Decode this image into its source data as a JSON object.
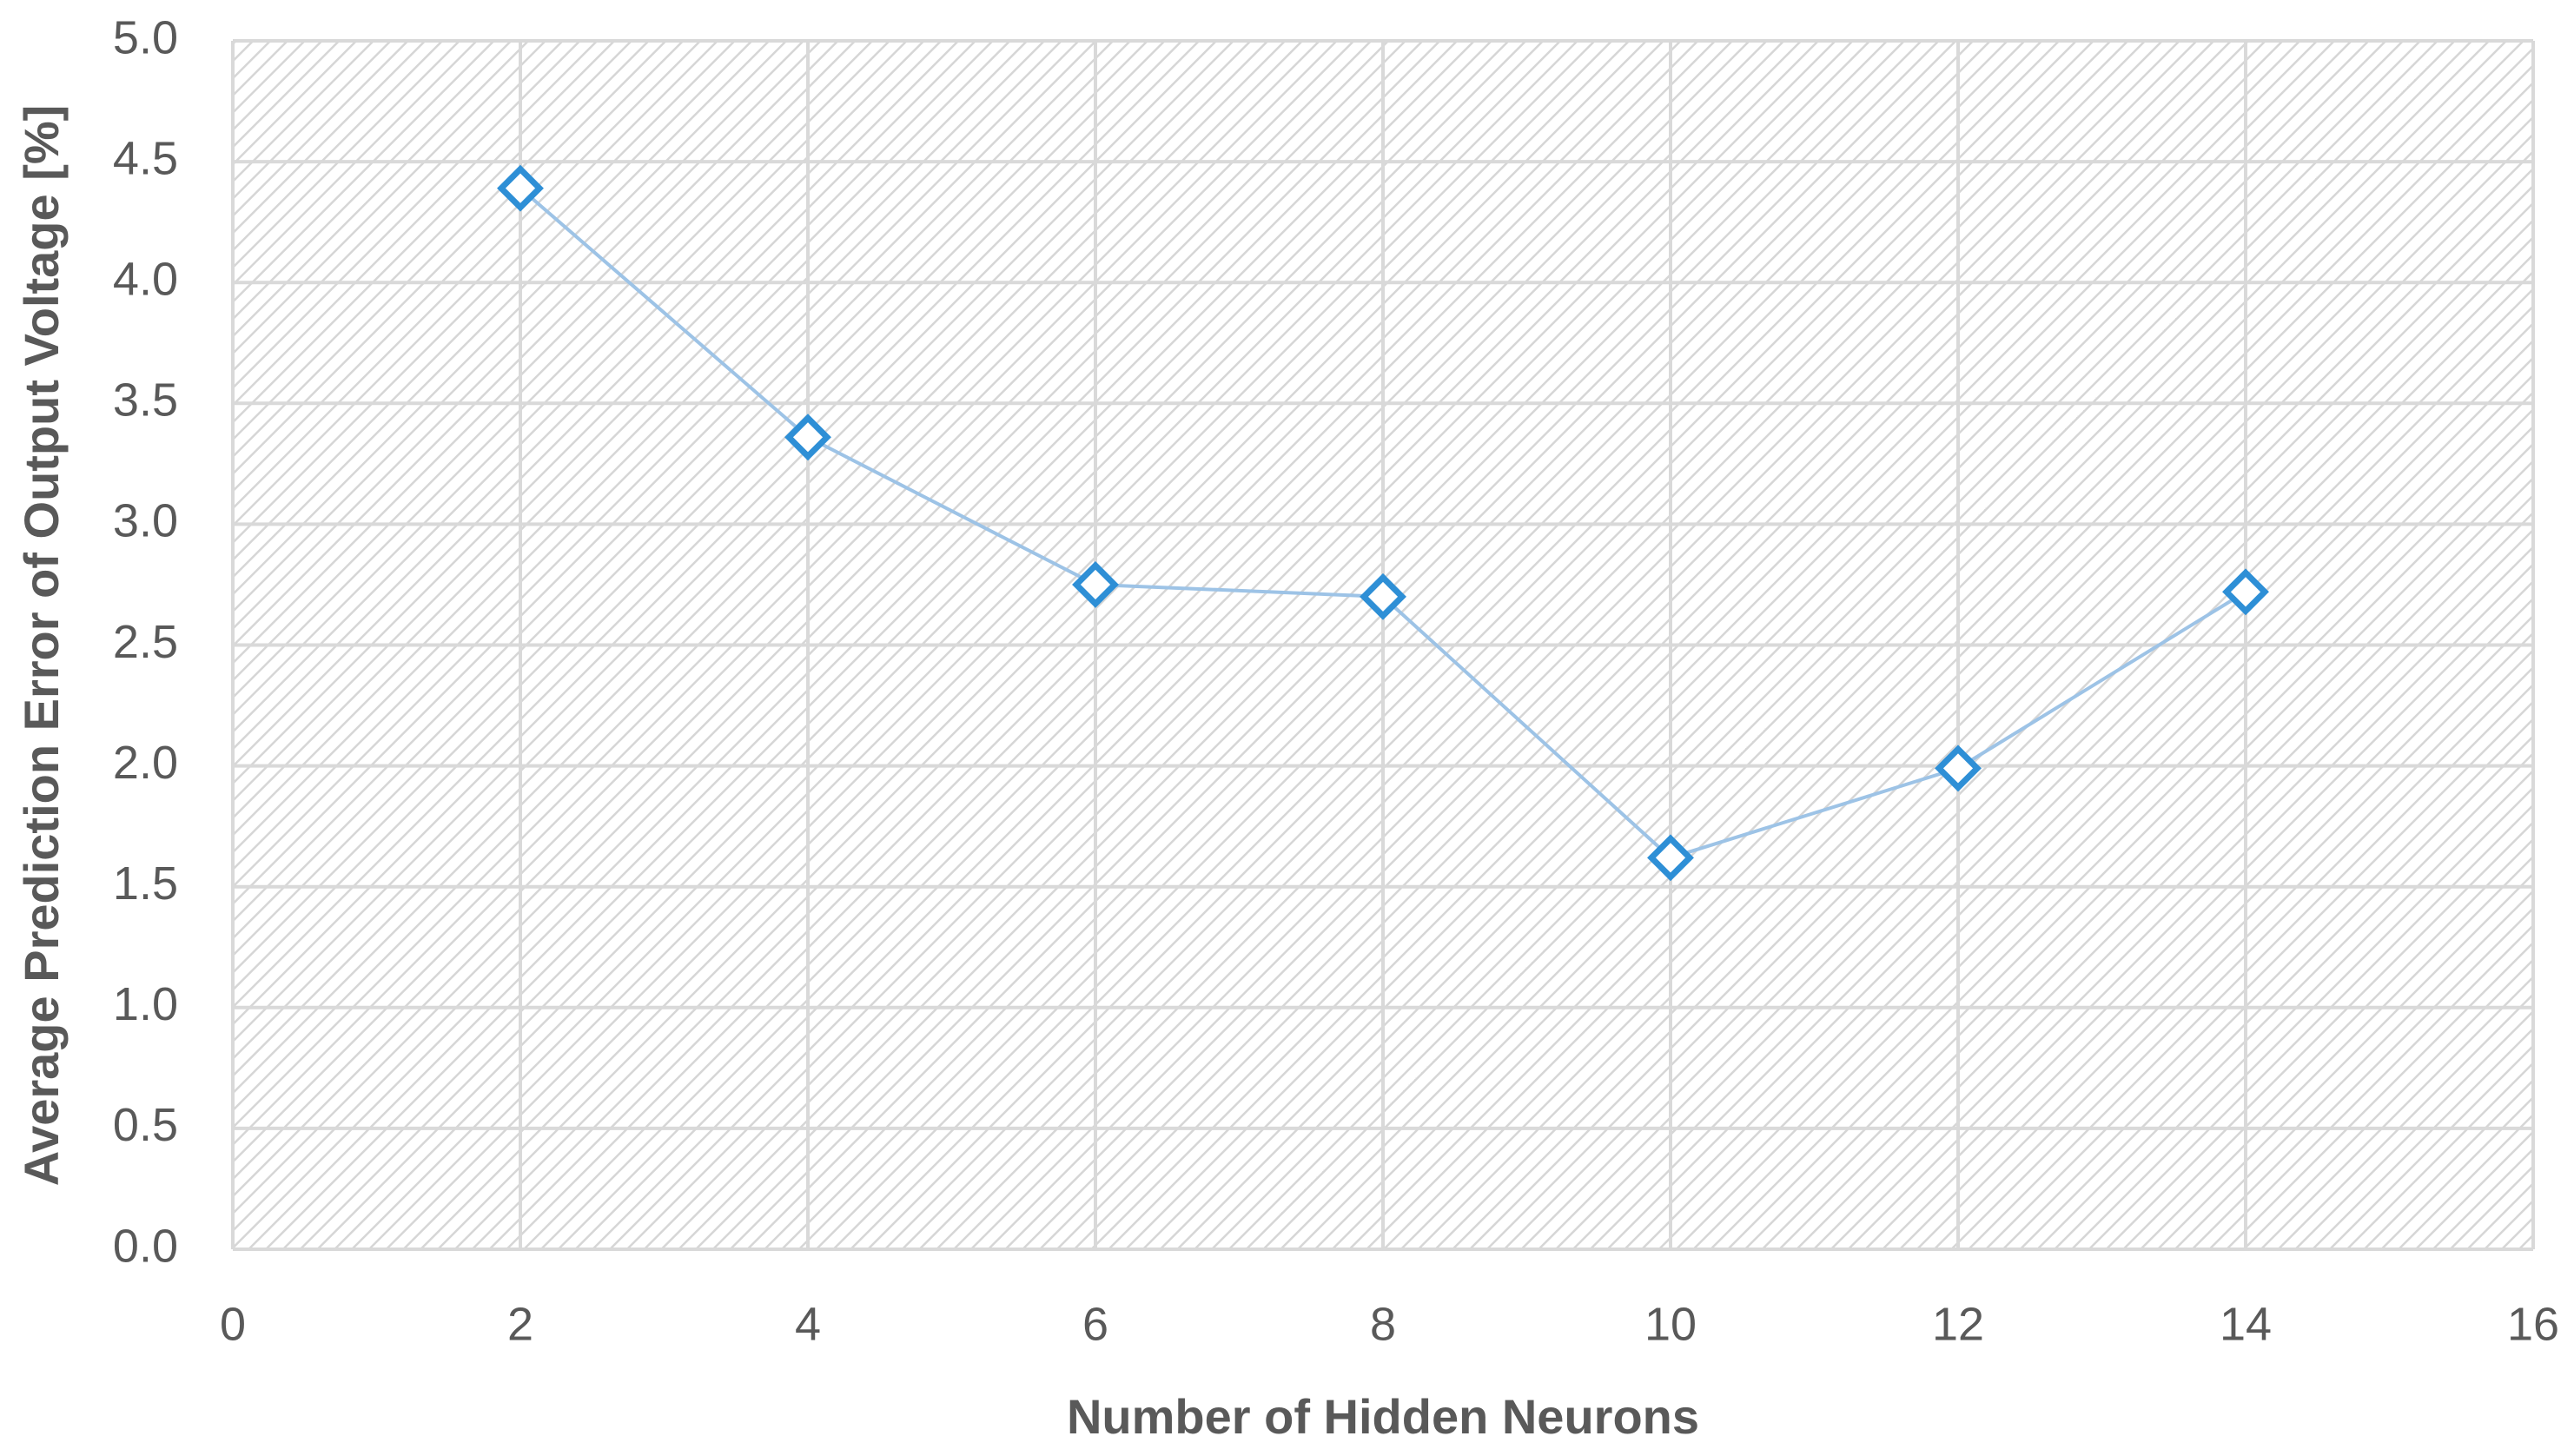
{
  "chart_data": {
    "type": "line",
    "x_label": "Number of Hidden Neurons",
    "y_label": "Average Prediction Error of Output Voltage [%]",
    "x": [
      2,
      4,
      6,
      8,
      10,
      12,
      14
    ],
    "series": [
      {
        "color": "#2e8fd6",
        "line_color": "#9dc3e6",
        "values": [
          4.39,
          3.36,
          2.75,
          2.7,
          1.62,
          1.99,
          2.72
        ]
      }
    ],
    "xlim": [
      0,
      16
    ],
    "xticks": [
      0,
      2,
      4,
      6,
      8,
      10,
      12,
      14,
      16
    ],
    "ylim": [
      0,
      5
    ],
    "yticks": [
      {
        "value": 0,
        "label": "0.0"
      },
      0.5,
      {
        "value": 1,
        "label": "1.0"
      },
      1.5,
      {
        "value": 2,
        "label": "2.0"
      },
      2.5,
      {
        "value": 3,
        "label": "3.0"
      },
      3.5,
      {
        "value": 4,
        "label": "4.0"
      },
      4.5,
      {
        "value": 5,
        "label": "5.0"
      }
    ],
    "grid": true,
    "marker": "diamond"
  }
}
